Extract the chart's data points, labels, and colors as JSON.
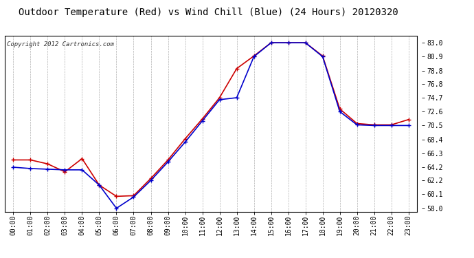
{
  "title": "Outdoor Temperature (Red) vs Wind Chill (Blue) (24 Hours) 20120320",
  "copyright_text": "Copyright 2012 Cartronics.com",
  "background_color": "#ffffff",
  "plot_bg_color": "#ffffff",
  "grid_color": "#b0b0b0",
  "hours": [
    0,
    1,
    2,
    3,
    4,
    5,
    6,
    7,
    8,
    9,
    10,
    11,
    12,
    13,
    14,
    15,
    16,
    17,
    18,
    19,
    20,
    21,
    22,
    23
  ],
  "hour_labels": [
    "00:00",
    "01:00",
    "02:00",
    "03:00",
    "04:00",
    "05:00",
    "06:00",
    "07:00",
    "08:00",
    "09:00",
    "10:00",
    "11:00",
    "12:00",
    "13:00",
    "14:00",
    "15:00",
    "16:00",
    "17:00",
    "18:00",
    "19:00",
    "20:00",
    "21:00",
    "22:00",
    "23:00"
  ],
  "temp_red": [
    65.3,
    65.3,
    64.7,
    63.5,
    65.5,
    61.5,
    59.8,
    59.9,
    62.5,
    65.3,
    68.5,
    71.5,
    74.7,
    79.1,
    81.0,
    83.0,
    83.0,
    83.0,
    81.0,
    73.0,
    70.8,
    70.6,
    70.6,
    71.4
  ],
  "wind_chill_blue": [
    64.2,
    64.0,
    63.9,
    63.8,
    63.8,
    61.5,
    58.0,
    59.7,
    62.2,
    65.0,
    68.0,
    71.2,
    74.4,
    74.7,
    80.9,
    83.0,
    83.0,
    83.0,
    80.9,
    72.6,
    70.6,
    70.5,
    70.5,
    70.5
  ],
  "ylim_min": 57.5,
  "ylim_max": 84.0,
  "yticks": [
    58.0,
    60.1,
    62.2,
    64.2,
    66.3,
    68.4,
    70.5,
    72.6,
    74.7,
    76.8,
    78.8,
    80.9,
    83.0
  ],
  "red_color": "#cc0000",
  "blue_color": "#0000cc",
  "marker": "+",
  "marker_size": 5,
  "line_width": 1.2,
  "title_fontsize": 10,
  "tick_fontsize": 7,
  "copyright_fontsize": 6.5
}
